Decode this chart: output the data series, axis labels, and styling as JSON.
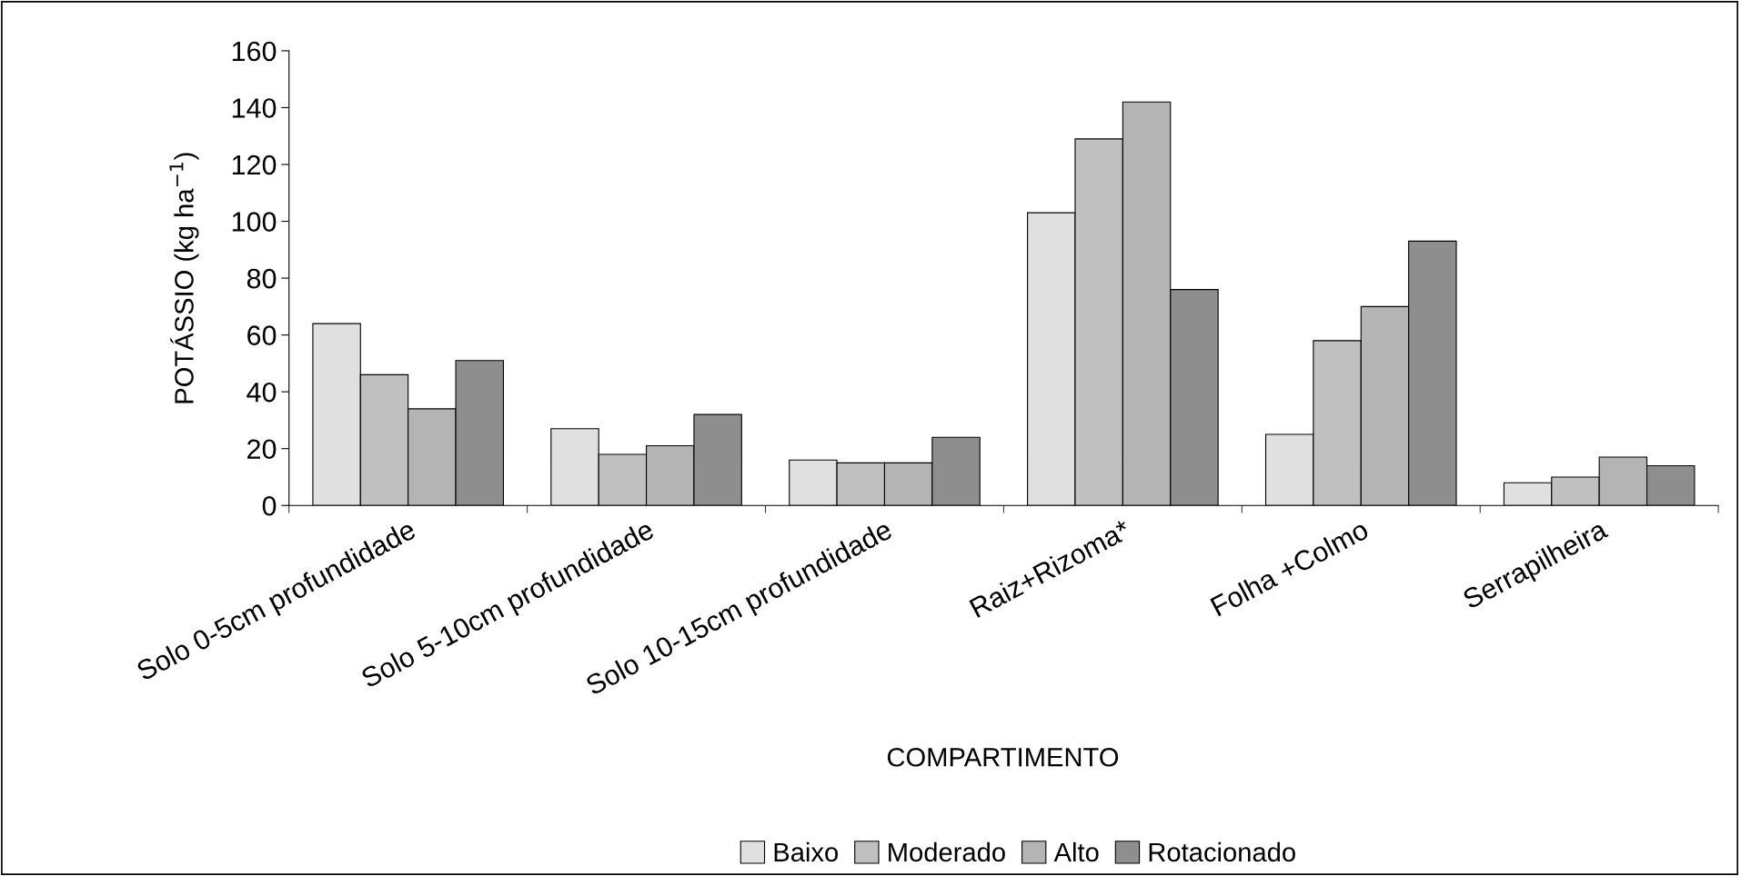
{
  "chart_data": {
    "type": "bar",
    "xlabel": "COMPARTIMENTO",
    "ylabel": "POTÁSSIO (kg ha$^{−1}$)",
    "categories": [
      "Solo 0-5cm profundidade",
      "Solo 5-10cm profundidade",
      "Solo 10-15cm profundidade",
      "Raiz+Rizoma*",
      "Folha +Colmo",
      "Serrapilheira"
    ],
    "series": [
      {
        "name": "Baixo",
        "color": "#e0e0e0",
        "values": [
          64,
          27,
          16,
          103,
          25,
          8
        ]
      },
      {
        "name": "Moderado",
        "color": "#c0c0c0",
        "values": [
          46,
          18,
          15,
          129,
          58,
          10
        ]
      },
      {
        "name": "Alto",
        "color": "#b4b4b4",
        "values": [
          34,
          21,
          15,
          142,
          70,
          17
        ]
      },
      {
        "name": "Rotacionado",
        "color": "#8e8e8e",
        "values": [
          51,
          32,
          24,
          76,
          93,
          14
        ]
      }
    ],
    "ylim": [
      0,
      160
    ],
    "yticks": [
      0,
      20,
      40,
      60,
      80,
      100,
      120,
      140,
      160
    ],
    "grid": false,
    "legend": "bottom"
  }
}
